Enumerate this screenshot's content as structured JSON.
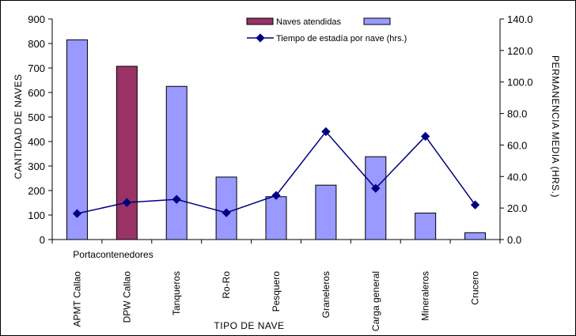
{
  "chart_data": {
    "type": "bar",
    "xlabel": "TIPO DE NAVE",
    "ylabel_left": "CANTIDAD DE NAVES",
    "ylabel_right": "PERMANENCIA MEDIA (HRS.)",
    "group_label": "Portacontenedores",
    "categories": [
      "APMT Callao",
      "DPW Callao",
      "Tanqueros",
      "Ro-Ro",
      "Pesquero",
      "Graneleros",
      "Carga general",
      "Mineraleros",
      "Crucero"
    ],
    "ylim_left": [
      0,
      900
    ],
    "yticks_left": [
      "0",
      "100",
      "200",
      "300",
      "400",
      "500",
      "600",
      "700",
      "800",
      "900"
    ],
    "ylim_right": [
      0,
      140
    ],
    "yticks_right": [
      "0.0",
      "20.0",
      "40.0",
      "60.0",
      "80.0",
      "100.0",
      "120.0",
      "140.0"
    ],
    "legend_position": "top-center",
    "series": [
      {
        "name": "Naves atendidas",
        "kind": "bar",
        "axis": "left",
        "values": [
          815,
          707,
          625,
          255,
          175,
          222,
          338,
          108,
          28
        ],
        "highlight_index": 1,
        "color": "#9999ff",
        "highlight_color": "#993366"
      },
      {
        "name": "Tiempo de estadía por nave (hrs.)",
        "kind": "line",
        "axis": "right",
        "values": [
          16.5,
          23.5,
          25.5,
          17.0,
          28.0,
          68.5,
          32.5,
          65.5,
          22.0
        ],
        "color": "#000080"
      }
    ]
  }
}
